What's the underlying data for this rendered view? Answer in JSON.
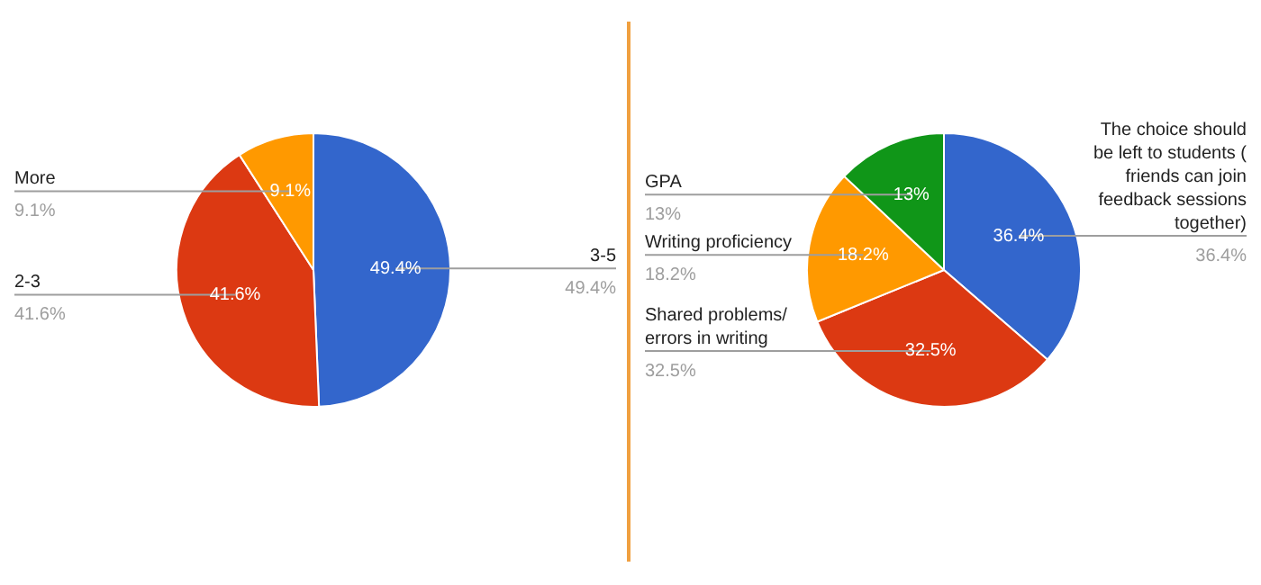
{
  "chart_data": [
    {
      "type": "pie",
      "categories": [
        "3-5",
        "2-3",
        "More"
      ],
      "values": [
        49.4,
        41.6,
        9.1
      ],
      "value_labels": [
        "49.4%",
        "41.6%",
        "9.1%"
      ],
      "colors": [
        "#3366cc",
        "#dc3912",
        "#ff9900"
      ]
    },
    {
      "type": "pie",
      "categories": [
        "The choice should be left to students ( friends can join feedback sessions together)",
        "Shared problems/ errors in writing",
        "Writing proficiency",
        "GPA"
      ],
      "values": [
        36.4,
        32.5,
        18.2,
        13
      ],
      "value_labels": [
        "36.4%",
        "32.5%",
        "18.2%",
        "13%"
      ],
      "colors": [
        "#3366cc",
        "#dc3912",
        "#ff9900",
        "#109618"
      ]
    }
  ]
}
